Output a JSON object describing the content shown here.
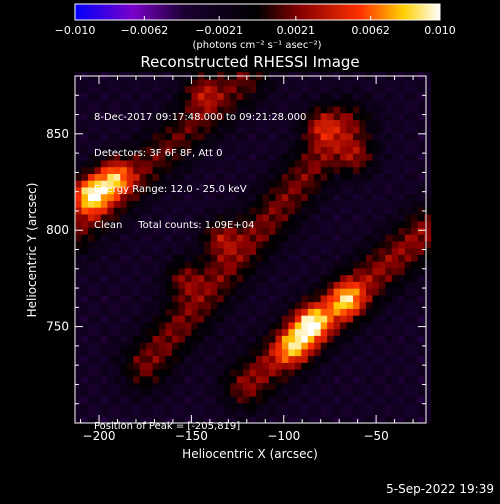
{
  "chart_data": {
    "type": "heatmap",
    "title": "Reconstructed RHESSI Image",
    "xlabel": "Heliocentric X (arcsec)",
    "ylabel": "Heliocentric Y (arcsec)",
    "xlim": [
      -213,
      -23
    ],
    "ylim": [
      700,
      880
    ],
    "xticks": [
      -200,
      -150,
      -100,
      -50
    ],
    "xtick_labels": [
      "−200",
      "−150",
      "−100",
      "−50"
    ],
    "yticks": [
      750,
      800,
      850
    ],
    "ytick_labels": [
      "750",
      "800",
      "850"
    ],
    "colorbar": {
      "min": -0.01,
      "max": 0.01,
      "ticks": [
        -0.01,
        -0.0062,
        -0.0021,
        0.0021,
        0.0062,
        0.01
      ],
      "tick_labels": [
        "−0.010",
        "−0.0062",
        "−0.0021",
        "0.0021",
        "0.0062",
        "0.010"
      ],
      "units": "(photons cm⁻² s⁻¹ asec⁻²)",
      "colors": [
        "#0000ff",
        "#7a00c8",
        "#000000",
        "#8a0000",
        "#ff3000",
        "#ffd000",
        "#ffffff"
      ]
    },
    "ridges": [
      {
        "x0": -213,
        "y0": 800,
        "x1": -120,
        "y1": 880,
        "value": 0.0045
      },
      {
        "x0": -175,
        "y0": 730,
        "x1": -65,
        "y1": 855,
        "value": 0.005
      },
      {
        "x0": -120,
        "y0": 720,
        "x1": -23,
        "y1": 800,
        "value": 0.0055
      }
    ],
    "hotspots": [
      {
        "x": -205,
        "y": 819,
        "value": 0.01
      },
      {
        "x": -192,
        "y": 828,
        "value": 0.0075
      },
      {
        "x": -85,
        "y": 752,
        "value": 0.008
      },
      {
        "x": -66,
        "y": 764,
        "value": 0.0065
      },
      {
        "x": -95,
        "y": 740,
        "value": 0.006
      },
      {
        "x": -80,
        "y": 855,
        "value": 0.005
      },
      {
        "x": -60,
        "y": 838,
        "value": 0.0045
      },
      {
        "x": -135,
        "y": 797,
        "value": 0.0045
      },
      {
        "x": -155,
        "y": 776,
        "value": 0.004
      },
      {
        "x": -145,
        "y": 873,
        "value": 0.004
      }
    ],
    "background_value": -0.003,
    "annotations": [
      "8-Dec-2017 09:17:48.000 to 09:21:28.000",
      "Detectors: 3F 6F 8F, Att 0",
      "Energy Range: 12.0 - 25.0 keV",
      "Clean     Total counts: 1.09E+04",
      "Position of Peak = [-205,819]"
    ]
  },
  "footer": {
    "timestamp": "5-Sep-2022 19:39"
  }
}
